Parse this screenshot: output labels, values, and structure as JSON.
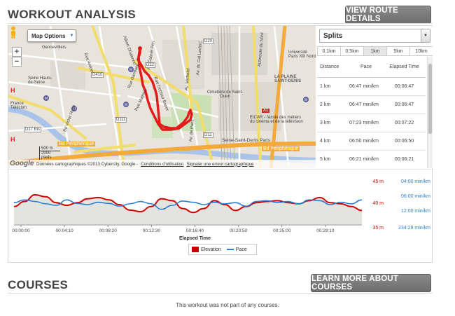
{
  "header": {
    "title": "WORKOUT ANALYSIS",
    "route_button": "VIEW ROUTE DETAILS"
  },
  "map": {
    "options_label": "Map Options",
    "zoom_in": "+",
    "zoom_out": "−",
    "labels": [
      "Albert Dhalenne",
      "Rue Ardoin",
      "Rue Garibaldi",
      "Rue Docteur Bauer",
      "Rue Mathieu",
      "Cimetière de Saint-Ouen",
      "Université Paris XIII Nord",
      "LA PLAINE SAINT-DENIS",
      "EICAR - l'école des métiers du cinéma et de la télévision",
      "Seine-Saint-Denis Paris",
      "Bd Périphérique",
      "Bd Victor Hugo",
      "Autoroute du Nord",
      "Av. Michelet",
      "Av. du Gal Leclerc",
      "Av. de Paris",
      "Av. Gabriel Péri",
      "Seine Hauts-de-Seine",
      "France Télécom",
      "Gennevilliers",
      "D410",
      "D22",
      "D111",
      "D20",
      "A1",
      "D17 Bis",
      "D11"
    ],
    "scale_m": "500 m",
    "scale_ft": "2000 pieds",
    "google": "Google",
    "attribution": "Données cartographiques ©2013 Cybercity, Google -",
    "terms": "Conditions d'utilisation",
    "report": "Signaler une erreur cartographique"
  },
  "splits": {
    "selector": "Splits",
    "tabs": [
      {
        "label": "0.1km",
        "active": false
      },
      {
        "label": "0.5km",
        "active": false
      },
      {
        "label": "1km",
        "active": true
      },
      {
        "label": "5km",
        "active": false
      },
      {
        "label": "10km",
        "active": false
      }
    ],
    "columns": [
      "Distance",
      "Pace",
      "Elapsed Time"
    ],
    "rows": [
      {
        "distance": "1 km",
        "pace": "06:47 min/km",
        "elapsed": "00:06:47"
      },
      {
        "distance": "2 km",
        "pace": "06:47 min/km",
        "elapsed": "00:06:47"
      },
      {
        "distance": "3 km",
        "pace": "07:23 min/km",
        "elapsed": "00:07:22"
      },
      {
        "distance": "4 km",
        "pace": "06:50 min/km",
        "elapsed": "00:06:50"
      },
      {
        "distance": "5 km",
        "pace": "06:21 min/km",
        "elapsed": "00:06:21"
      }
    ]
  },
  "chart_data": {
    "type": "line",
    "title": "",
    "xlabel": "Elapsed Time",
    "ylabel": "",
    "x_ticks": [
      "00:00:00",
      "00:04:10",
      "00:08:20",
      "00:12:30",
      "00:16:40",
      "00:20:50",
      "00:25:00",
      "00:29:10"
    ],
    "left_axis": {
      "labels": [
        "45 m",
        "40 m",
        "35 m"
      ],
      "range": [
        35,
        45
      ]
    },
    "right_axis": {
      "labels": [
        "04:00 min/km",
        "06:00 min/km",
        "12:00 min/km",
        "234:28 min/km"
      ]
    },
    "legend": [
      {
        "name": "Elevation",
        "color": "#cc0000"
      },
      {
        "name": "Pace",
        "color": "#2a7fd4"
      }
    ],
    "series": [
      {
        "name": "Elevation",
        "color": "#cc0000",
        "x": [
          0,
          1,
          2,
          3,
          4,
          5,
          6,
          7,
          8,
          9,
          10,
          11,
          12,
          13,
          14,
          15,
          16,
          17,
          18,
          19,
          20,
          21,
          22,
          23,
          24,
          25,
          26,
          27,
          28,
          29,
          30,
          31,
          32,
          33
        ],
        "values": [
          39.5,
          40.8,
          42.5,
          42.0,
          40.5,
          39.8,
          40.5,
          41.5,
          41.8,
          41.2,
          40.0,
          38.6,
          38.2,
          39.5,
          41.5,
          41.0,
          39.0,
          38.0,
          39.0,
          41.0,
          40.0,
          38.5,
          39.5,
          40.5,
          40.8,
          41.0,
          40.5,
          40.2,
          41.0,
          41.8,
          40.5,
          40.2,
          39.5,
          38.5
        ]
      },
      {
        "name": "Pace",
        "color": "#2a7fd4",
        "x": [
          0,
          1,
          2,
          3,
          4,
          5,
          6,
          7,
          8,
          9,
          10,
          11,
          12,
          13,
          14,
          15,
          16,
          17,
          18,
          19,
          20,
          21,
          22,
          23,
          24,
          25,
          26,
          27,
          28,
          29,
          30,
          31,
          32,
          33
        ],
        "values": [
          40.5,
          41.2,
          40.8,
          40.2,
          39.8,
          41.2,
          40.3,
          40.0,
          40.6,
          40.3,
          39.6,
          40.2,
          40.8,
          40.2,
          38.8,
          39.8,
          40.9,
          40.6,
          40.0,
          40.6,
          40.2,
          40.5,
          39.6,
          40.8,
          41.0,
          40.5,
          40.8,
          40.2,
          41.2,
          41.0,
          40.0,
          40.6,
          40.2,
          41.2
        ]
      }
    ]
  },
  "courses": {
    "title": "COURSES",
    "button": "LEARN MORE ABOUT COURSES",
    "note": "This workout was not part of any courses."
  }
}
